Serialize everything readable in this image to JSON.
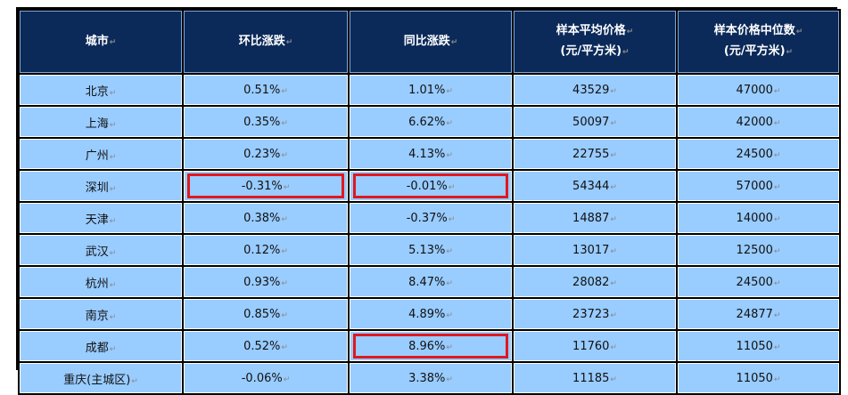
{
  "table": {
    "headers": [
      {
        "line1": "城市",
        "line2": ""
      },
      {
        "line1": "环比涨跌",
        "line2": ""
      },
      {
        "line1": "同比涨跌",
        "line2": ""
      },
      {
        "line1": "样本平均价格",
        "line2": "(元/平方米)"
      },
      {
        "line1": "样本价格中位数",
        "line2": "(元/平方米)"
      }
    ],
    "rows": [
      {
        "city": "北京",
        "mom": "0.51%",
        "yoy": "1.01%",
        "avg": "43529",
        "median": "47000"
      },
      {
        "city": "上海",
        "mom": "0.35%",
        "yoy": "6.62%",
        "avg": "50097",
        "median": "42000"
      },
      {
        "city": "广州",
        "mom": "0.23%",
        "yoy": "4.13%",
        "avg": "22755",
        "median": "24500"
      },
      {
        "city": "深圳",
        "mom": "-0.31%",
        "yoy": "-0.01%",
        "avg": "54344",
        "median": "57000"
      },
      {
        "city": "天津",
        "mom": "0.38%",
        "yoy": "-0.37%",
        "avg": "14887",
        "median": "14000"
      },
      {
        "city": "武汉",
        "mom": "0.12%",
        "yoy": "5.13%",
        "avg": "13017",
        "median": "12500"
      },
      {
        "city": "杭州",
        "mom": "0.93%",
        "yoy": "8.47%",
        "avg": "28082",
        "median": "24500"
      },
      {
        "city": "南京",
        "mom": "0.85%",
        "yoy": "4.89%",
        "avg": "23723",
        "median": "24877"
      },
      {
        "city": "成都",
        "mom": "0.52%",
        "yoy": "8.96%",
        "avg": "11760",
        "median": "11050"
      },
      {
        "city": "重庆(主城区)",
        "mom": "-0.06%",
        "yoy": "3.38%",
        "avg": "11185",
        "median": "11050"
      }
    ],
    "highlighted_cells": [
      {
        "row": 3,
        "col": "mom"
      },
      {
        "row": 3,
        "col": "yoy"
      },
      {
        "row": 8,
        "col": "yoy"
      }
    ],
    "paragraph_mark": "↵",
    "colors": {
      "header_bg": "#0b2a59",
      "cell_bg": "#99ccff",
      "highlight_border": "#e0181e"
    }
  }
}
